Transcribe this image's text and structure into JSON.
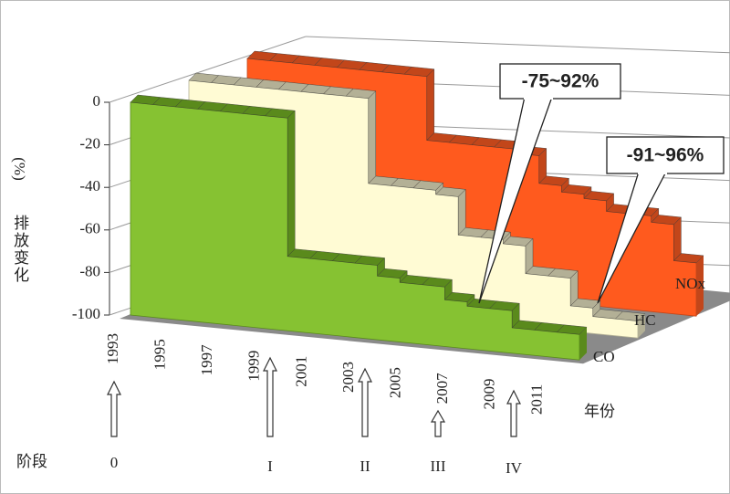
{
  "chart_data": {
    "type": "step3d",
    "y_label": "排放变化",
    "y_unit": "(%)",
    "x_label": "年份",
    "phase_label": "阶段",
    "phases": [
      "0",
      "I",
      "II",
      "III",
      "IV"
    ],
    "annotations": [
      "-75~92%",
      "-91~96%"
    ],
    "categories": [
      "1993",
      null,
      "1995",
      null,
      "1997",
      null,
      "1999",
      null,
      "2001",
      null,
      "2003",
      null,
      "2005",
      null,
      "2007",
      null,
      "2009",
      null,
      "2011",
      null
    ],
    "ylim": [
      -100,
      0
    ],
    "yticks": [
      0,
      -20,
      -40,
      -60,
      -80,
      -100
    ],
    "grid": true,
    "series": [
      {
        "name": "CO",
        "color": "#86c232",
        "edge_color": "#5a8a1c",
        "values": [
          0,
          0,
          0,
          0,
          0,
          0,
          0,
          -65,
          -65,
          -65,
          -65,
          -70,
          -72,
          -72,
          -78,
          -80,
          -80,
          -88,
          -88,
          -88
        ]
      },
      {
        "name": "HC",
        "color": "#fffbd4",
        "edge_color": "#b3b096",
        "values": [
          0,
          0,
          0,
          0,
          0,
          0,
          0,
          0,
          -40,
          -40,
          -40,
          -42,
          -60,
          -60,
          -62,
          -75,
          -75,
          -88,
          -92,
          -92
        ]
      },
      {
        "name": "NOx",
        "color": "#ff5a1e",
        "edge_color": "#c2461a",
        "values": [
          0,
          0,
          0,
          0,
          0,
          0,
          0,
          0,
          -30,
          -30,
          -30,
          -30,
          -32,
          -45,
          -48,
          -50,
          -55,
          -55,
          -58,
          -75
        ]
      }
    ]
  }
}
